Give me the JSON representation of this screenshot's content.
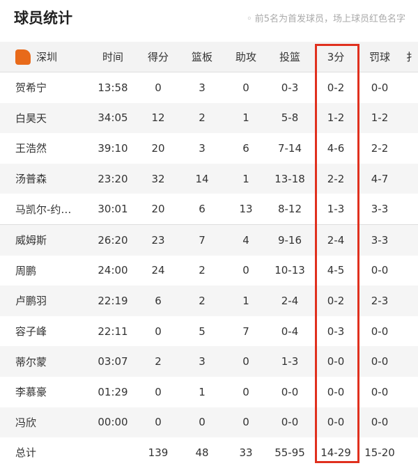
{
  "header": {
    "title": "球员统计",
    "note": "◦ 前5名为首发球员，场上球员红色名字"
  },
  "table": {
    "team": "深圳",
    "columns": [
      "时间",
      "得分",
      "篮板",
      "助攻",
      "投篮",
      "3分",
      "罚球",
      "扌"
    ],
    "rows": [
      [
        "贺希宁",
        "13:58",
        "0",
        "3",
        "0",
        "0-3",
        "0-2",
        "0-0"
      ],
      [
        "白昊天",
        "34:05",
        "12",
        "2",
        "1",
        "5-8",
        "1-2",
        "1-2"
      ],
      [
        "王浩然",
        "39:10",
        "20",
        "3",
        "6",
        "7-14",
        "4-6",
        "2-2"
      ],
      [
        "汤普森",
        "23:20",
        "32",
        "14",
        "1",
        "13-18",
        "2-2",
        "4-7"
      ],
      [
        "马凯尔-约…",
        "30:01",
        "20",
        "6",
        "13",
        "8-12",
        "1-3",
        "3-3"
      ],
      [
        "威姆斯",
        "26:20",
        "23",
        "7",
        "4",
        "9-16",
        "2-4",
        "3-3"
      ],
      [
        "周鹏",
        "24:00",
        "24",
        "2",
        "0",
        "10-13",
        "4-5",
        "0-0"
      ],
      [
        "卢鹏羽",
        "22:19",
        "6",
        "2",
        "1",
        "2-4",
        "0-2",
        "2-3"
      ],
      [
        "容子峰",
        "22:11",
        "0",
        "5",
        "7",
        "0-4",
        "0-3",
        "0-0"
      ],
      [
        "蒂尔蒙",
        "03:07",
        "2",
        "3",
        "0",
        "1-3",
        "0-0",
        "0-0"
      ],
      [
        "李慕豪",
        "01:29",
        "0",
        "1",
        "0",
        "0-0",
        "0-0",
        "0-0"
      ],
      [
        "冯欣",
        "00:00",
        "0",
        "0",
        "0",
        "0-0",
        "0-0",
        "0-0"
      ]
    ],
    "total": [
      "总计",
      "",
      "139",
      "48",
      "33",
      "55-95",
      "14-29",
      "15-20"
    ]
  },
  "colors": {
    "highlight": "#e0301e",
    "logo": "#e86a1a"
  }
}
